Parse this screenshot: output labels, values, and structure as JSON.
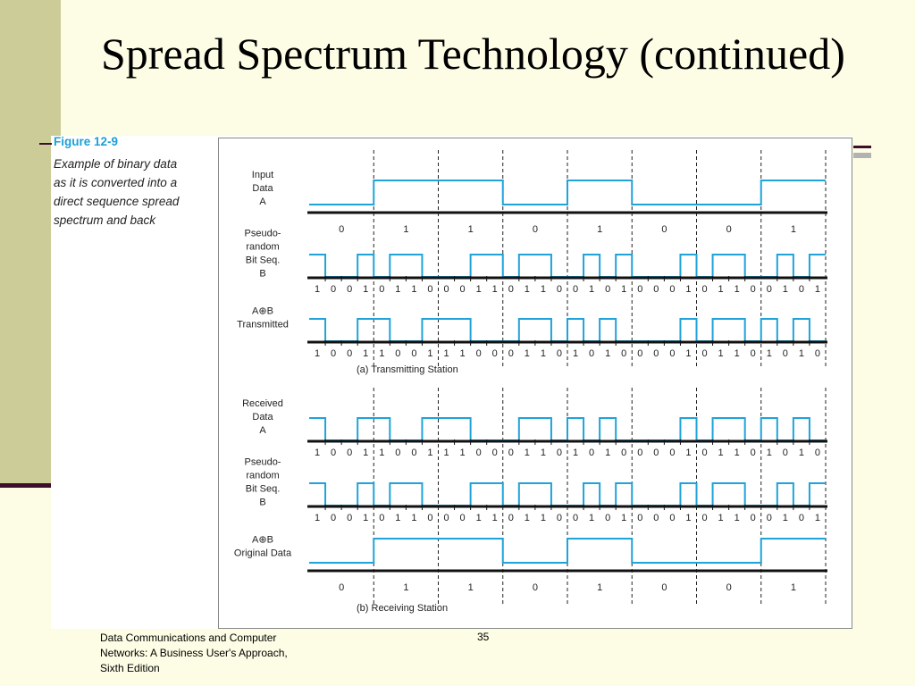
{
  "slide": {
    "title": "Spread Spectrum Technology (continued)",
    "footer_lines": [
      "Data Communications and Computer",
      "Networks: A Business User's Approach,",
      "Sixth Edition"
    ],
    "page_number": "35"
  },
  "figure": {
    "label": "Figure 12-9",
    "caption_lines": [
      "Example of binary data",
      "as it is converted into a",
      "direct sequence spread",
      "spectrum and back"
    ]
  },
  "colors": {
    "signal": "#1fa3d9",
    "frame": "#3d0d2c",
    "figure_label": "#1aa0d8"
  },
  "diagram": {
    "sections": [
      {
        "caption": "(a)  Transmitting Station",
        "rows": [
          {
            "label_lines": [
              "Input",
              "Data",
              "A"
            ],
            "type": "data",
            "bits": [
              "0",
              "1",
              "1",
              "0",
              "1",
              "0",
              "0",
              "1"
            ]
          },
          {
            "label_lines": [
              "Pseudo-",
              "random",
              "Bit Seq.",
              "B"
            ],
            "type": "chip",
            "bits": [
              "1",
              "0",
              "0",
              "1",
              "0",
              "1",
              "1",
              "0",
              "0",
              "0",
              "1",
              "1",
              "0",
              "1",
              "1",
              "0",
              "0",
              "1",
              "0",
              "1",
              "0",
              "0",
              "0",
              "1",
              "0",
              "1",
              "1",
              "0",
              "0",
              "1",
              "0",
              "1"
            ]
          },
          {
            "label_lines": [
              "A⊕B",
              "Transmitted"
            ],
            "type": "chip",
            "bits": [
              "1",
              "0",
              "0",
              "1",
              "1",
              "0",
              "0",
              "1",
              "1",
              "1",
              "0",
              "0",
              "0",
              "1",
              "1",
              "0",
              "1",
              "0",
              "1",
              "0",
              "0",
              "0",
              "0",
              "1",
              "0",
              "1",
              "1",
              "0",
              "1",
              "0",
              "1",
              "0"
            ]
          }
        ]
      },
      {
        "caption": "(b)  Receiving Station",
        "rows": [
          {
            "label_lines": [
              "Received",
              "Data",
              "A"
            ],
            "type": "chip",
            "bits": [
              "1",
              "0",
              "0",
              "1",
              "1",
              "0",
              "0",
              "1",
              "1",
              "1",
              "0",
              "0",
              "0",
              "1",
              "1",
              "0",
              "1",
              "0",
              "1",
              "0",
              "0",
              "0",
              "0",
              "1",
              "0",
              "1",
              "1",
              "0",
              "1",
              "0",
              "1",
              "0"
            ]
          },
          {
            "label_lines": [
              "Pseudo-",
              "random",
              "Bit Seq.",
              "B"
            ],
            "type": "chip",
            "bits": [
              "1",
              "0",
              "0",
              "1",
              "0",
              "1",
              "1",
              "0",
              "0",
              "0",
              "1",
              "1",
              "0",
              "1",
              "1",
              "0",
              "0",
              "1",
              "0",
              "1",
              "0",
              "0",
              "0",
              "1",
              "0",
              "1",
              "1",
              "0",
              "0",
              "1",
              "0",
              "1"
            ]
          },
          {
            "label_lines": [
              "A⊕B",
              "Original Data"
            ],
            "type": "data",
            "bits": [
              "0",
              "1",
              "1",
              "0",
              "1",
              "0",
              "0",
              "1"
            ]
          }
        ]
      }
    ]
  }
}
